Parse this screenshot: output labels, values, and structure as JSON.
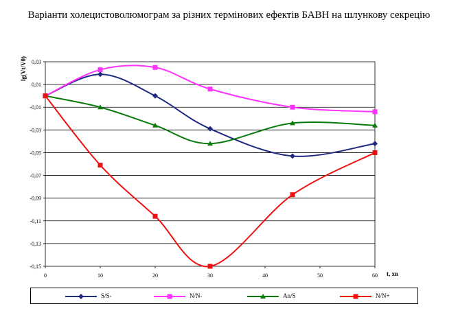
{
  "title": "Варіанти холецистоволюмограм за різних термінових ефектів БАВН на шлункову секрецію",
  "chart_data": {
    "type": "line",
    "title": "Варіанти холецистоволюмограм за різних термінових ефектів БАВН на шлункову секрецію",
    "xlabel": "t, хв",
    "ylabel": "lg(Vt/V0)",
    "xlim": [
      0,
      60
    ],
    "ylim": [
      -0.15,
      0.03
    ],
    "xticks": [
      "0",
      "10",
      "20",
      "30",
      "40",
      "50",
      "60"
    ],
    "yticks": [
      "0,03",
      "0,01",
      "-0,01",
      "-0,03",
      "-0,05",
      "-0,07",
      "-0,09",
      "-0,11",
      "-0,13",
      "-0,15"
    ],
    "grid": "horizontal",
    "legend_position": "bottom",
    "series": [
      {
        "name": "S/S-",
        "color": "#1f2a80",
        "marker": "diamond",
        "x": [
          0,
          10,
          20,
          30,
          45,
          60
        ],
        "values": [
          0.0,
          0.019,
          0.0,
          -0.029,
          -0.053,
          -0.042
        ]
      },
      {
        "name": "N/N-",
        "color": "#ff33ff",
        "marker": "square",
        "x": [
          0,
          10,
          20,
          30,
          45,
          60
        ],
        "values": [
          0.0,
          0.023,
          0.025,
          0.006,
          -0.01,
          -0.014
        ]
      },
      {
        "name": "An/S",
        "color": "#0a7a0a",
        "marker": "triangle",
        "x": [
          0,
          10,
          20,
          30,
          45,
          60
        ],
        "values": [
          0.0,
          -0.01,
          -0.026,
          -0.042,
          -0.024,
          -0.026
        ]
      },
      {
        "name": "N/N+",
        "color": "#ee1111",
        "marker": "square",
        "x": [
          0,
          10,
          20,
          30,
          45,
          60
        ],
        "values": [
          0.0,
          -0.061,
          -0.106,
          -0.15,
          -0.087,
          -0.05
        ]
      }
    ]
  }
}
